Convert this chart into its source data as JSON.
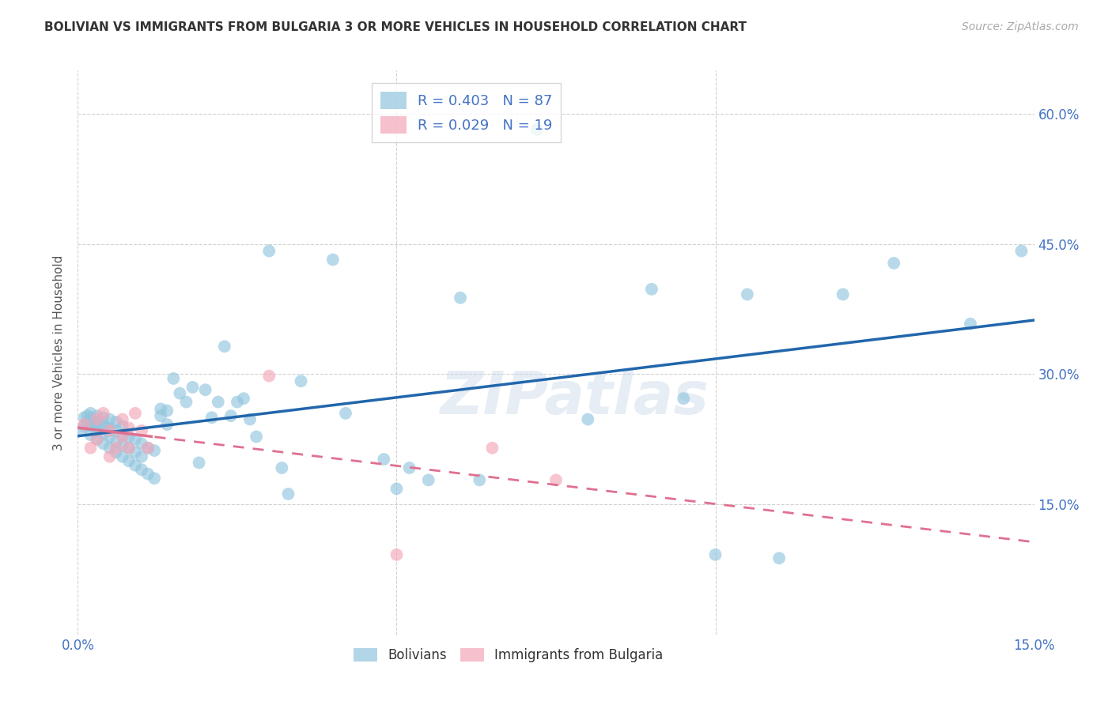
{
  "title": "BOLIVIAN VS IMMIGRANTS FROM BULGARIA 3 OR MORE VEHICLES IN HOUSEHOLD CORRELATION CHART",
  "source": "Source: ZipAtlas.com",
  "ylabel": "3 or more Vehicles in Household",
  "xlim": [
    0.0,
    0.15
  ],
  "ylim": [
    0.0,
    0.65
  ],
  "bolivian_R": 0.403,
  "bolivian_N": 87,
  "bulgaria_R": 0.029,
  "bulgaria_N": 19,
  "bolivian_color": "#92c5de",
  "bulgaria_color": "#f4a6b8",
  "trend_bolivian_color": "#2166ac",
  "trend_bulgaria_color": "#e07090",
  "background_color": "#ffffff",
  "grid_color": "#cccccc",
  "watermark": "ZIPatlas",
  "bolivian_x": [
    0.0005,
    0.001,
    0.001,
    0.0015,
    0.0015,
    0.002,
    0.002,
    0.002,
    0.002,
    0.002,
    0.003,
    0.003,
    0.003,
    0.003,
    0.003,
    0.004,
    0.004,
    0.004,
    0.004,
    0.004,
    0.005,
    0.005,
    0.005,
    0.005,
    0.005,
    0.006,
    0.006,
    0.006,
    0.006,
    0.007,
    0.007,
    0.007,
    0.007,
    0.008,
    0.008,
    0.008,
    0.009,
    0.009,
    0.009,
    0.01,
    0.01,
    0.01,
    0.011,
    0.011,
    0.012,
    0.012,
    0.013,
    0.013,
    0.014,
    0.014,
    0.015,
    0.016,
    0.017,
    0.018,
    0.019,
    0.02,
    0.021,
    0.022,
    0.023,
    0.024,
    0.025,
    0.026,
    0.027,
    0.028,
    0.03,
    0.032,
    0.033,
    0.035,
    0.04,
    0.042,
    0.048,
    0.05,
    0.052,
    0.055,
    0.06,
    0.063,
    0.072,
    0.08,
    0.09,
    0.095,
    0.1,
    0.105,
    0.11,
    0.12,
    0.128,
    0.14,
    0.148
  ],
  "bolivian_y": [
    0.235,
    0.25,
    0.24,
    0.245,
    0.252,
    0.23,
    0.24,
    0.25,
    0.255,
    0.242,
    0.225,
    0.235,
    0.245,
    0.252,
    0.24,
    0.22,
    0.232,
    0.242,
    0.25,
    0.238,
    0.215,
    0.228,
    0.238,
    0.248,
    0.235,
    0.21,
    0.222,
    0.235,
    0.245,
    0.205,
    0.218,
    0.23,
    0.24,
    0.2,
    0.215,
    0.228,
    0.195,
    0.21,
    0.225,
    0.19,
    0.205,
    0.22,
    0.185,
    0.215,
    0.18,
    0.212,
    0.252,
    0.26,
    0.242,
    0.258,
    0.295,
    0.278,
    0.268,
    0.285,
    0.198,
    0.282,
    0.25,
    0.268,
    0.332,
    0.252,
    0.268,
    0.272,
    0.248,
    0.228,
    0.442,
    0.192,
    0.162,
    0.292,
    0.432,
    0.255,
    0.202,
    0.168,
    0.192,
    0.178,
    0.388,
    0.178,
    0.582,
    0.248,
    0.398,
    0.272,
    0.092,
    0.392,
    0.088,
    0.392,
    0.428,
    0.358,
    0.442
  ],
  "bulgaria_x": [
    0.001,
    0.002,
    0.003,
    0.003,
    0.004,
    0.005,
    0.005,
    0.006,
    0.007,
    0.007,
    0.008,
    0.008,
    0.009,
    0.01,
    0.011,
    0.03,
    0.05,
    0.065,
    0.075
  ],
  "bulgaria_y": [
    0.242,
    0.215,
    0.248,
    0.225,
    0.255,
    0.205,
    0.235,
    0.215,
    0.248,
    0.228,
    0.238,
    0.215,
    0.255,
    0.235,
    0.215,
    0.298,
    0.092,
    0.215,
    0.178
  ]
}
